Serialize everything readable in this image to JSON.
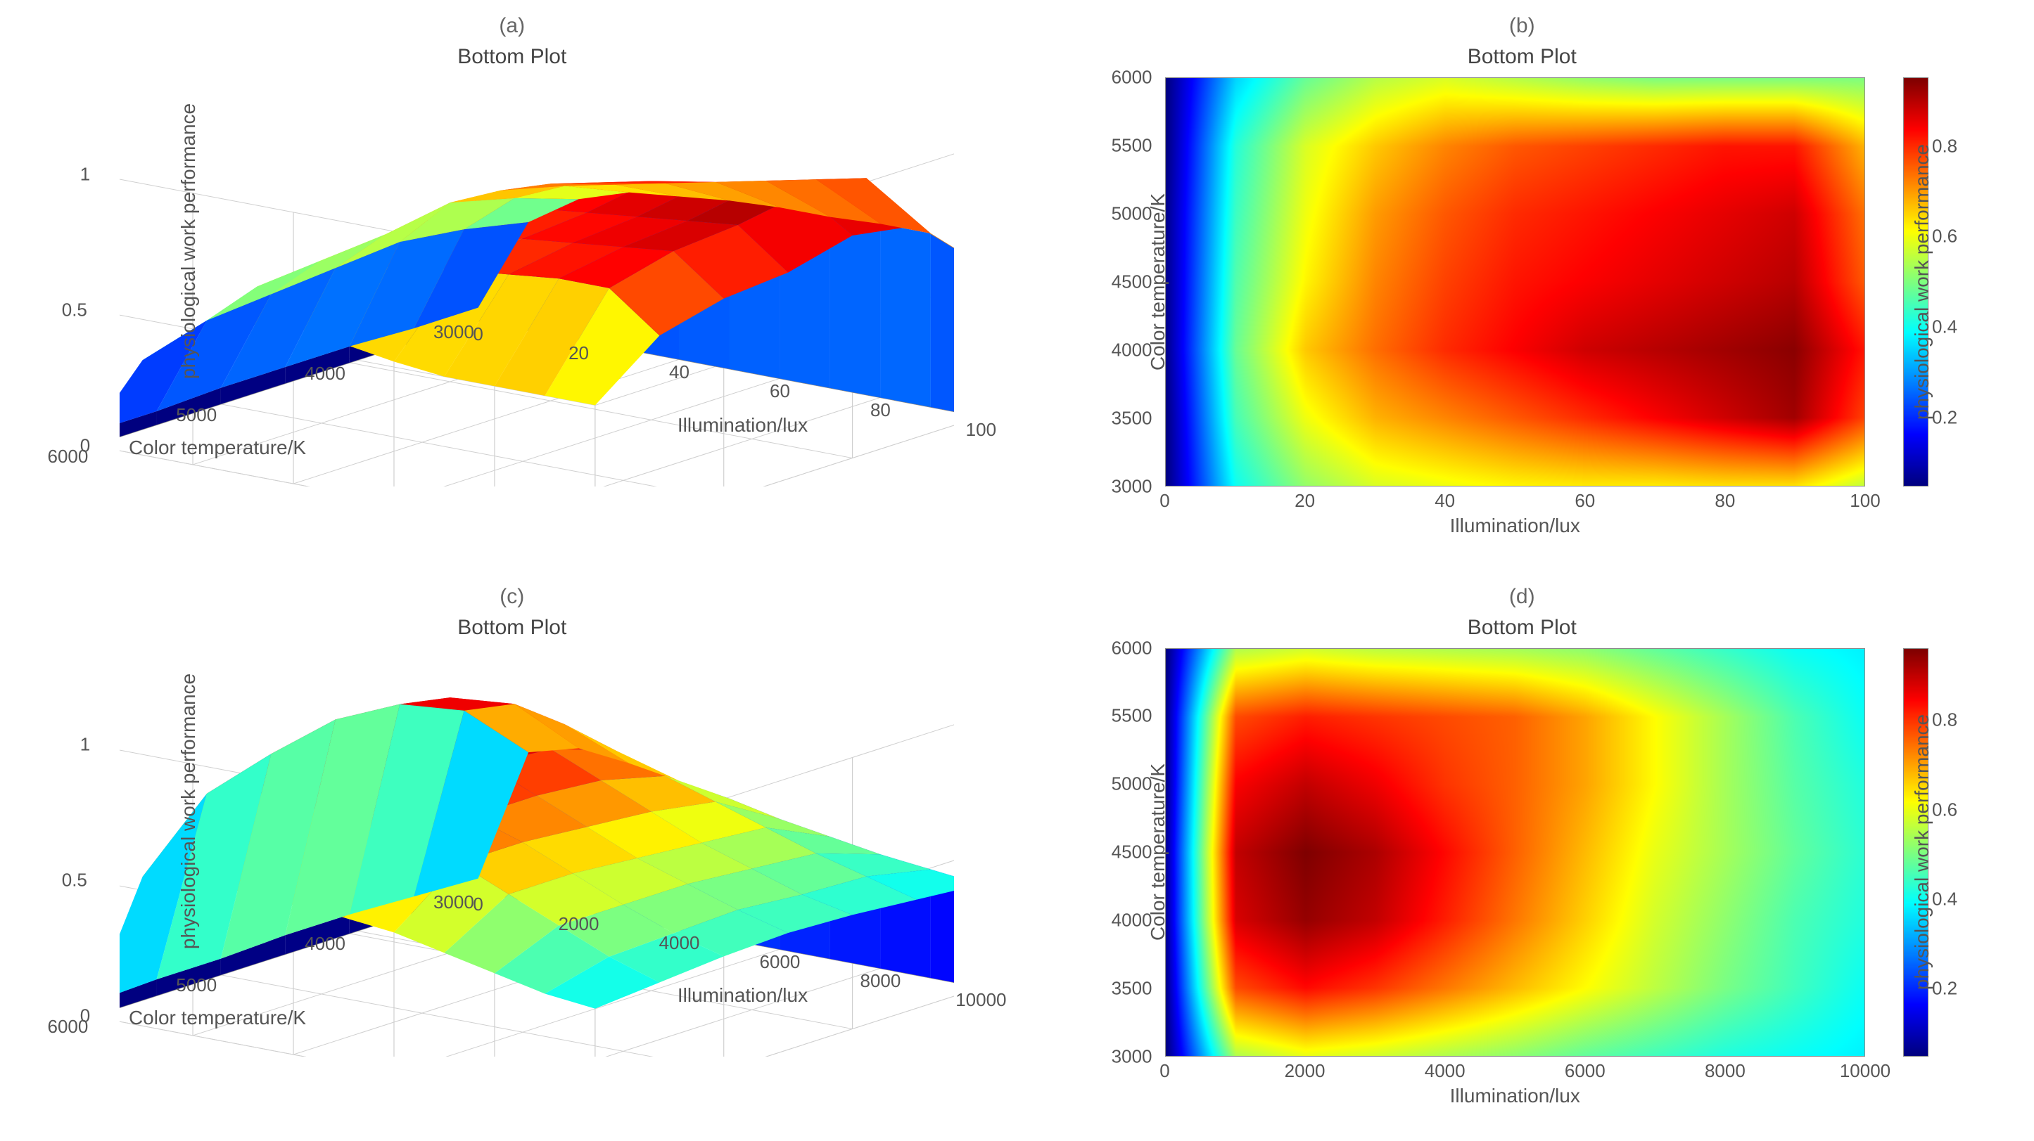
{
  "background_color": "#ffffff",
  "text_color": "#666666",
  "font_family": "Arial, Helvetica, sans-serif",
  "panel_letter_fontsize": 30,
  "title_fontsize": 30,
  "label_fontsize": 28,
  "tick_fontsize": 26,
  "jet_colormap": [
    "#00007f",
    "#0000ff",
    "#007fff",
    "#00ffff",
    "#7fff7f",
    "#ffff00",
    "#ff7f00",
    "#ff0000",
    "#7f0000"
  ],
  "grid_color": "#cfcfcf",
  "axis_line_color": "#888888",
  "panels": {
    "a": {
      "type": "surface3d",
      "letter": "(a)",
      "title": "Bottom Plot",
      "xlabel": "Illumination/lux",
      "ylabel": "Color temperature/K",
      "zlabel": "physiological work performance",
      "x": [
        0,
        10,
        20,
        30,
        40,
        50,
        60,
        70,
        80,
        90,
        100
      ],
      "y": [
        3000,
        3500,
        4000,
        4500,
        5000,
        5500,
        6000
      ],
      "xticks": [
        0,
        20,
        40,
        60,
        80,
        100
      ],
      "yticks": [
        3000,
        4000,
        5000,
        6000
      ],
      "zticks": [
        0,
        0.5,
        1
      ],
      "zlim": [
        0,
        1
      ],
      "z": [
        [
          0.05,
          0.4,
          0.52,
          0.58,
          0.6,
          0.62,
          0.63,
          0.63,
          0.64,
          0.64,
          0.56
        ],
        [
          0.05,
          0.45,
          0.6,
          0.68,
          0.72,
          0.76,
          0.8,
          0.84,
          0.88,
          0.92,
          0.78
        ],
        [
          0.06,
          0.48,
          0.66,
          0.74,
          0.8,
          0.84,
          0.88,
          0.9,
          0.92,
          0.94,
          0.82
        ],
        [
          0.06,
          0.46,
          0.62,
          0.72,
          0.78,
          0.82,
          0.84,
          0.86,
          0.88,
          0.9,
          0.76
        ],
        [
          0.06,
          0.44,
          0.6,
          0.7,
          0.76,
          0.8,
          0.82,
          0.84,
          0.86,
          0.88,
          0.74
        ],
        [
          0.05,
          0.42,
          0.58,
          0.66,
          0.72,
          0.76,
          0.78,
          0.8,
          0.82,
          0.82,
          0.68
        ],
        [
          0.05,
          0.35,
          0.48,
          0.55,
          0.58,
          0.55,
          0.52,
          0.5,
          0.5,
          0.5,
          0.5
        ]
      ],
      "view_azimuth_deg": -37.5,
      "view_elevation_deg": 30
    },
    "b": {
      "type": "heatmap",
      "letter": "(b)",
      "title": "Bottom Plot",
      "xlabel": "Illumination/lux",
      "ylabel": "Color temperature/K",
      "cb_label": "physiological work performance",
      "x": [
        0,
        10,
        20,
        30,
        40,
        50,
        60,
        70,
        80,
        90,
        100
      ],
      "y": [
        3000,
        3500,
        4000,
        4500,
        5000,
        5500,
        6000
      ],
      "xlim": [
        0,
        100
      ],
      "ylim": [
        3000,
        6000
      ],
      "xticks": [
        0,
        20,
        40,
        60,
        80,
        100
      ],
      "yticks": [
        3000,
        3500,
        4000,
        4500,
        5000,
        5500,
        6000
      ],
      "cticks": [
        0.2,
        0.4,
        0.6,
        0.8
      ],
      "clim": [
        0.05,
        0.95
      ],
      "z": [
        [
          0.05,
          0.4,
          0.52,
          0.58,
          0.6,
          0.62,
          0.63,
          0.63,
          0.64,
          0.64,
          0.56
        ],
        [
          0.05,
          0.45,
          0.6,
          0.68,
          0.72,
          0.76,
          0.8,
          0.84,
          0.88,
          0.92,
          0.78
        ],
        [
          0.06,
          0.48,
          0.66,
          0.74,
          0.8,
          0.84,
          0.88,
          0.9,
          0.92,
          0.94,
          0.82
        ],
        [
          0.06,
          0.46,
          0.62,
          0.72,
          0.78,
          0.82,
          0.84,
          0.86,
          0.88,
          0.9,
          0.76
        ],
        [
          0.06,
          0.44,
          0.6,
          0.7,
          0.76,
          0.8,
          0.82,
          0.84,
          0.86,
          0.88,
          0.74
        ],
        [
          0.05,
          0.42,
          0.58,
          0.66,
          0.72,
          0.76,
          0.78,
          0.8,
          0.82,
          0.82,
          0.68
        ],
        [
          0.05,
          0.35,
          0.48,
          0.55,
          0.58,
          0.55,
          0.52,
          0.5,
          0.5,
          0.5,
          0.5
        ]
      ]
    },
    "c": {
      "type": "surface3d",
      "letter": "(c)",
      "title": "Bottom Plot",
      "xlabel": "Illumination/lux",
      "ylabel": "Color temperature/K",
      "zlabel": "physiological work performance",
      "x": [
        0,
        1000,
        2000,
        3000,
        4000,
        5000,
        6000,
        7000,
        8000,
        9000,
        10000
      ],
      "y": [
        3000,
        3500,
        4000,
        4500,
        5000,
        5500,
        6000
      ],
      "xticks": [
        0,
        2000,
        4000,
        6000,
        8000,
        10000
      ],
      "yticks": [
        3000,
        4000,
        5000,
        6000
      ],
      "zticks": [
        0,
        0.5,
        1
      ],
      "zlim": [
        0,
        1
      ],
      "z": [
        [
          0.05,
          0.55,
          0.6,
          0.58,
          0.55,
          0.52,
          0.48,
          0.45,
          0.42,
          0.4,
          0.38
        ],
        [
          0.06,
          0.78,
          0.84,
          0.8,
          0.74,
          0.68,
          0.62,
          0.56,
          0.5,
          0.45,
          0.4
        ],
        [
          0.07,
          0.88,
          0.94,
          0.9,
          0.82,
          0.74,
          0.66,
          0.58,
          0.52,
          0.46,
          0.42
        ],
        [
          0.07,
          0.9,
          0.96,
          0.92,
          0.84,
          0.76,
          0.68,
          0.6,
          0.54,
          0.48,
          0.43
        ],
        [
          0.06,
          0.85,
          0.9,
          0.86,
          0.8,
          0.76,
          0.7,
          0.62,
          0.54,
          0.47,
          0.42
        ],
        [
          0.06,
          0.78,
          0.82,
          0.8,
          0.78,
          0.76,
          0.7,
          0.62,
          0.54,
          0.46,
          0.4
        ],
        [
          0.05,
          0.55,
          0.58,
          0.56,
          0.55,
          0.54,
          0.52,
          0.48,
          0.44,
          0.4,
          0.38
        ]
      ],
      "view_azimuth_deg": -37.5,
      "view_elevation_deg": 30
    },
    "d": {
      "type": "heatmap",
      "letter": "(d)",
      "title": "Bottom Plot",
      "xlabel": "Illumination/lux",
      "ylabel": "Color temperature/K",
      "cb_label": "physiological work performance",
      "x": [
        0,
        1000,
        2000,
        3000,
        4000,
        5000,
        6000,
        7000,
        8000,
        9000,
        10000
      ],
      "y": [
        3000,
        3500,
        4000,
        4500,
        5000,
        5500,
        6000
      ],
      "xlim": [
        0,
        10000
      ],
      "ylim": [
        3000,
        6000
      ],
      "xticks": [
        0,
        2000,
        4000,
        6000,
        8000,
        10000
      ],
      "yticks": [
        3000,
        3500,
        4000,
        4500,
        5000,
        5500,
        6000
      ],
      "cticks": [
        0.2,
        0.4,
        0.6,
        0.8
      ],
      "clim": [
        0.05,
        0.96
      ],
      "z": [
        [
          0.05,
          0.55,
          0.6,
          0.58,
          0.55,
          0.52,
          0.48,
          0.45,
          0.42,
          0.4,
          0.38
        ],
        [
          0.06,
          0.78,
          0.84,
          0.8,
          0.74,
          0.68,
          0.62,
          0.56,
          0.5,
          0.45,
          0.4
        ],
        [
          0.07,
          0.88,
          0.94,
          0.9,
          0.82,
          0.74,
          0.66,
          0.58,
          0.52,
          0.46,
          0.42
        ],
        [
          0.07,
          0.9,
          0.96,
          0.92,
          0.84,
          0.76,
          0.68,
          0.6,
          0.54,
          0.48,
          0.43
        ],
        [
          0.06,
          0.85,
          0.9,
          0.86,
          0.8,
          0.76,
          0.7,
          0.62,
          0.54,
          0.47,
          0.42
        ],
        [
          0.06,
          0.78,
          0.82,
          0.8,
          0.78,
          0.76,
          0.7,
          0.62,
          0.54,
          0.46,
          0.4
        ],
        [
          0.05,
          0.55,
          0.58,
          0.56,
          0.55,
          0.54,
          0.52,
          0.48,
          0.44,
          0.4,
          0.38
        ]
      ]
    }
  }
}
